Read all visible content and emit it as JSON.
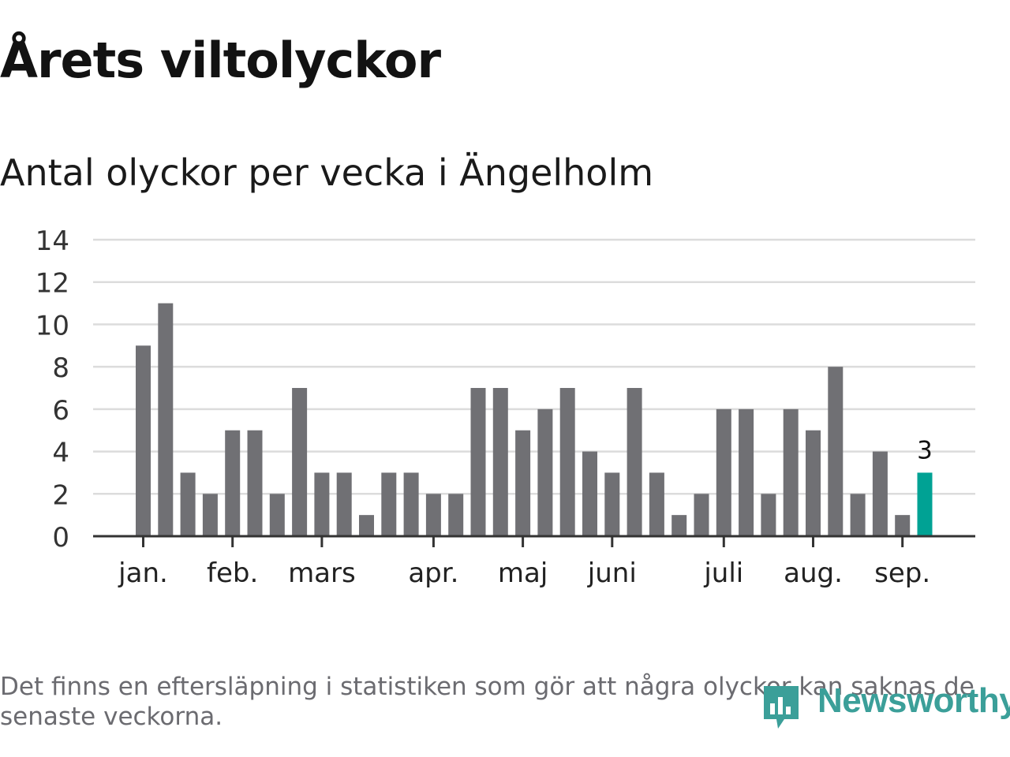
{
  "title": "Årets viltolyckor",
  "subtitle": "Antal olyckor per vecka i Ängelholm",
  "note": "Det finns en eftersläpning i statistiken som gör att några olyckor kan saknas de senaste veckorna.",
  "brand": "Newsworthy",
  "colors": {
    "bar": "#707074",
    "highlight": "#00a294",
    "grid": "#dcdcdc",
    "axis": "#333333",
    "brand": "#3b9f99"
  },
  "chart_data": {
    "type": "bar",
    "xlabel": "",
    "ylabel": "",
    "ylim": [
      0,
      14
    ],
    "yticks": [
      0,
      2,
      4,
      6,
      8,
      10,
      12,
      14
    ],
    "grid": true,
    "legend": "none",
    "values": [
      9,
      11,
      3,
      2,
      5,
      5,
      2,
      7,
      3,
      3,
      1,
      3,
      3,
      2,
      2,
      7,
      7,
      5,
      6,
      7,
      4,
      3,
      7,
      3,
      1,
      2,
      6,
      6,
      2,
      6,
      5,
      8,
      2,
      4,
      1,
      3
    ],
    "month_labels": [
      {
        "label": "jan.",
        "bar_index": 0
      },
      {
        "label": "feb.",
        "bar_index": 4
      },
      {
        "label": "mars",
        "bar_index": 8
      },
      {
        "label": "apr.",
        "bar_index": 13
      },
      {
        "label": "maj",
        "bar_index": 17
      },
      {
        "label": "juni",
        "bar_index": 21
      },
      {
        "label": "juli",
        "bar_index": 26
      },
      {
        "label": "aug.",
        "bar_index": 30
      },
      {
        "label": "sep.",
        "bar_index": 34
      }
    ],
    "highlight_index": 35,
    "highlight_label": "3"
  }
}
